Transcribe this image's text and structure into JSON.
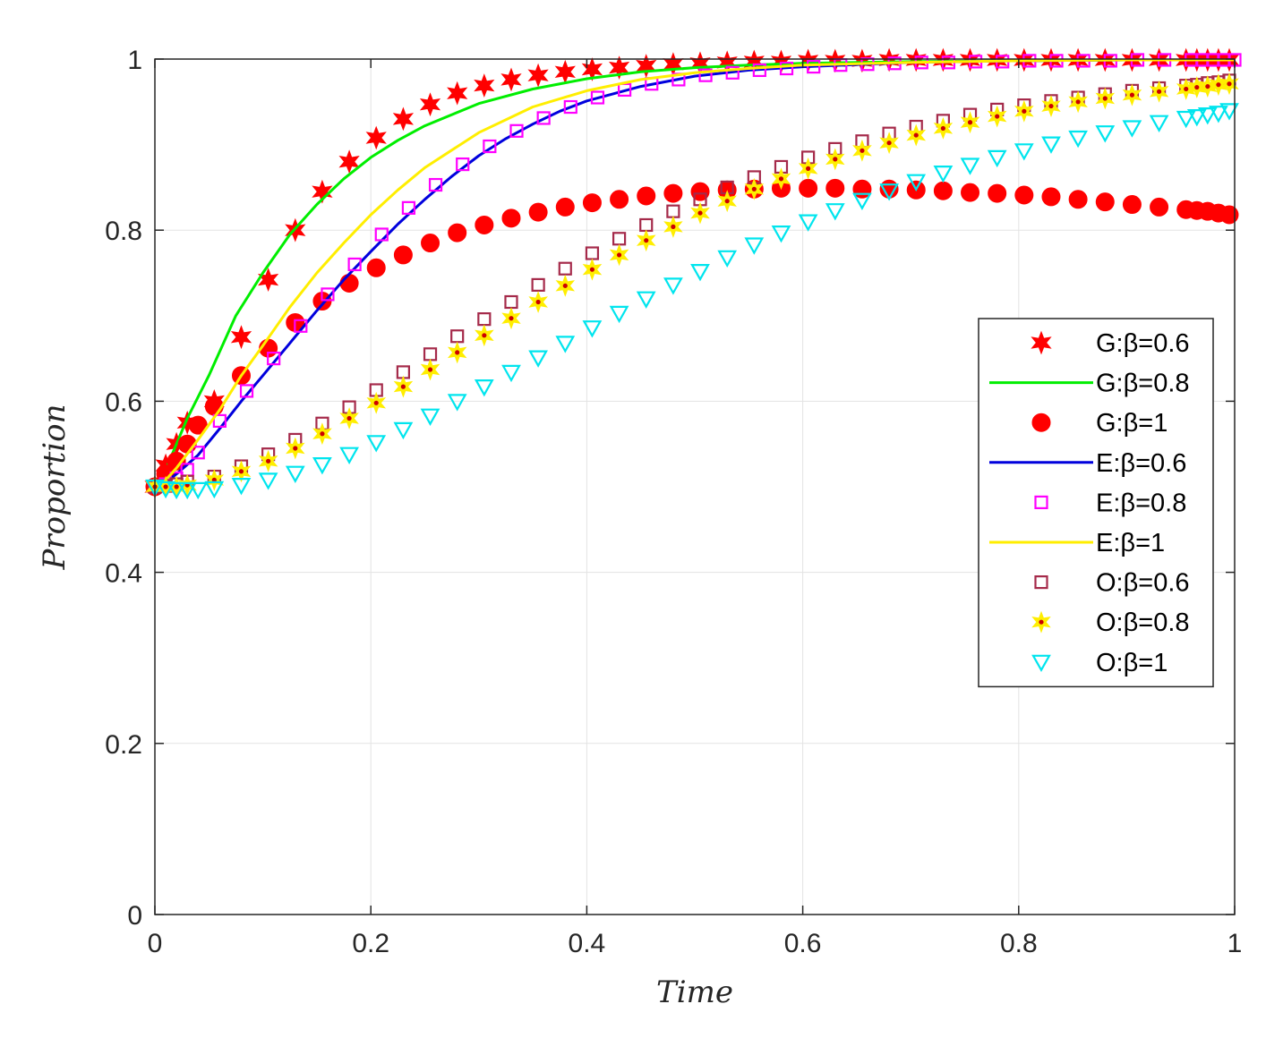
{
  "chart_data": {
    "type": "line",
    "title": "",
    "xlabel": "Time",
    "ylabel": "Proportion",
    "xlim": [
      0,
      1
    ],
    "ylim": [
      0,
      1
    ],
    "grid": true,
    "legend_position": "right",
    "x_ticks": [
      "0",
      "0.2",
      "0.4",
      "0.6",
      "0.8",
      "1"
    ],
    "y_ticks": [
      "0",
      "0.2",
      "0.4",
      "0.6",
      "0.8",
      "1"
    ],
    "series": [
      {
        "name": "G:β=0.6",
        "style": "star",
        "color": "#ff0000",
        "fill": "#ff0000",
        "x": [
          0,
          0.01,
          0.02,
          0.03,
          0.055,
          0.08,
          0.105,
          0.13,
          0.155,
          0.18,
          0.205,
          0.23,
          0.255,
          0.28,
          0.305,
          0.33,
          0.355,
          0.38,
          0.405,
          0.43,
          0.455,
          0.48,
          0.505,
          0.53,
          0.555,
          0.58,
          0.605,
          0.63,
          0.655,
          0.68,
          0.705,
          0.73,
          0.755,
          0.78,
          0.805,
          0.83,
          0.855,
          0.88,
          0.905,
          0.93,
          0.955,
          0.965,
          0.975,
          0.985,
          0.995
        ],
        "y": [
          0.5,
          0.525,
          0.55,
          0.575,
          0.6,
          0.675,
          0.742,
          0.8,
          0.845,
          0.88,
          0.908,
          0.93,
          0.947,
          0.96,
          0.969,
          0.976,
          0.981,
          0.985,
          0.988,
          0.99,
          0.992,
          0.994,
          0.995,
          0.996,
          0.997,
          0.997,
          0.998,
          0.998,
          0.998,
          0.999,
          0.999,
          0.999,
          0.999,
          0.999,
          0.999,
          0.999,
          0.999,
          0.999,
          0.999,
          0.999,
          0.999,
          0.999,
          0.999,
          0.999,
          0.999
        ]
      },
      {
        "name": "G:β=0.8",
        "style": "line",
        "color": "#00ee00",
        "x": [
          0,
          0.01,
          0.02,
          0.03,
          0.05,
          0.075,
          0.1,
          0.125,
          0.15,
          0.175,
          0.2,
          0.225,
          0.25,
          0.3,
          0.35,
          0.4,
          0.45,
          0.5,
          0.55,
          0.6,
          0.7,
          0.8,
          0.9,
          1
        ],
        "y": [
          0.5,
          0.52,
          0.55,
          0.58,
          0.63,
          0.7,
          0.75,
          0.795,
          0.83,
          0.86,
          0.885,
          0.905,
          0.922,
          0.948,
          0.965,
          0.977,
          0.985,
          0.99,
          0.993,
          0.995,
          0.997,
          0.998,
          0.999,
          0.999
        ]
      },
      {
        "name": "G:β=1",
        "style": "circle",
        "color": "#ff0000",
        "fill": "#ff0000",
        "x": [
          0,
          0.01,
          0.02,
          0.03,
          0.04,
          0.055,
          0.08,
          0.105,
          0.13,
          0.155,
          0.18,
          0.205,
          0.23,
          0.255,
          0.28,
          0.305,
          0.33,
          0.355,
          0.38,
          0.405,
          0.43,
          0.455,
          0.48,
          0.505,
          0.53,
          0.555,
          0.58,
          0.605,
          0.63,
          0.655,
          0.68,
          0.705,
          0.73,
          0.755,
          0.78,
          0.805,
          0.83,
          0.855,
          0.88,
          0.905,
          0.93,
          0.955,
          0.965,
          0.975,
          0.985,
          0.995
        ],
        "y": [
          0.5,
          0.515,
          0.53,
          0.55,
          0.572,
          0.594,
          0.63,
          0.662,
          0.692,
          0.717,
          0.738,
          0.756,
          0.771,
          0.785,
          0.797,
          0.806,
          0.814,
          0.821,
          0.827,
          0.832,
          0.836,
          0.84,
          0.843,
          0.845,
          0.847,
          0.848,
          0.849,
          0.849,
          0.849,
          0.848,
          0.848,
          0.847,
          0.846,
          0.844,
          0.843,
          0.841,
          0.839,
          0.836,
          0.833,
          0.83,
          0.827,
          0.824,
          0.823,
          0.822,
          0.82,
          0.818
        ]
      },
      {
        "name": "E:β=0.6",
        "style": "line",
        "color": "#0000dd",
        "x": [
          0,
          0.01,
          0.02,
          0.04,
          0.06,
          0.08,
          0.1,
          0.125,
          0.15,
          0.175,
          0.2,
          0.225,
          0.25,
          0.275,
          0.3,
          0.325,
          0.35,
          0.375,
          0.4,
          0.45,
          0.5,
          0.55,
          0.6,
          0.7,
          0.8,
          0.9,
          1
        ],
        "y": [
          0.5,
          0.505,
          0.515,
          0.537,
          0.568,
          0.6,
          0.63,
          0.668,
          0.706,
          0.742,
          0.775,
          0.807,
          0.836,
          0.863,
          0.887,
          0.907,
          0.924,
          0.939,
          0.951,
          0.968,
          0.98,
          0.987,
          0.991,
          0.996,
          0.998,
          0.999,
          0.999
        ]
      },
      {
        "name": "E:β=0.8",
        "style": "square",
        "color": "#ff00ff",
        "fill": "none",
        "x": [
          0,
          0.01,
          0.02,
          0.03,
          0.04,
          0.06,
          0.085,
          0.11,
          0.135,
          0.16,
          0.185,
          0.21,
          0.235,
          0.26,
          0.285,
          0.31,
          0.335,
          0.36,
          0.385,
          0.41,
          0.435,
          0.46,
          0.485,
          0.51,
          0.535,
          0.56,
          0.585,
          0.61,
          0.635,
          0.66,
          0.685,
          0.71,
          0.735,
          0.76,
          0.785,
          0.81,
          0.835,
          0.86,
          0.885,
          0.91,
          0.935,
          0.96,
          0.97,
          0.98,
          0.99,
          1
        ],
        "y": [
          0.5,
          0.503,
          0.51,
          0.52,
          0.54,
          0.577,
          0.612,
          0.65,
          0.688,
          0.725,
          0.76,
          0.795,
          0.826,
          0.853,
          0.877,
          0.898,
          0.916,
          0.931,
          0.944,
          0.955,
          0.964,
          0.971,
          0.976,
          0.981,
          0.984,
          0.987,
          0.989,
          0.991,
          0.993,
          0.994,
          0.995,
          0.996,
          0.996,
          0.997,
          0.997,
          0.998,
          0.998,
          0.998,
          0.998,
          0.999,
          0.999,
          0.999,
          0.999,
          0.999,
          0.999,
          0.999
        ]
      },
      {
        "name": "E:β=1",
        "style": "line",
        "color": "#ffee00",
        "x": [
          0,
          0.01,
          0.02,
          0.04,
          0.06,
          0.08,
          0.1,
          0.125,
          0.15,
          0.175,
          0.2,
          0.225,
          0.25,
          0.3,
          0.35,
          0.4,
          0.45,
          0.5,
          0.55,
          0.6,
          0.7,
          0.8,
          0.9,
          1
        ],
        "y": [
          0.5,
          0.508,
          0.522,
          0.555,
          0.59,
          0.63,
          0.665,
          0.71,
          0.75,
          0.785,
          0.818,
          0.847,
          0.873,
          0.914,
          0.944,
          0.963,
          0.976,
          0.984,
          0.989,
          0.993,
          0.996,
          0.998,
          0.999,
          0.999
        ]
      },
      {
        "name": "O:β=0.6",
        "style": "square",
        "color": "#a52a4a",
        "fill": "none",
        "x": [
          0,
          0.01,
          0.02,
          0.03,
          0.055,
          0.08,
          0.105,
          0.13,
          0.155,
          0.18,
          0.205,
          0.23,
          0.255,
          0.28,
          0.305,
          0.33,
          0.355,
          0.38,
          0.405,
          0.43,
          0.455,
          0.48,
          0.505,
          0.53,
          0.555,
          0.58,
          0.605,
          0.63,
          0.655,
          0.68,
          0.705,
          0.73,
          0.755,
          0.78,
          0.805,
          0.83,
          0.855,
          0.88,
          0.905,
          0.93,
          0.955,
          0.965,
          0.975,
          0.985,
          0.995
        ],
        "y": [
          0.5,
          0.501,
          0.503,
          0.506,
          0.512,
          0.524,
          0.538,
          0.555,
          0.574,
          0.593,
          0.613,
          0.634,
          0.655,
          0.676,
          0.696,
          0.716,
          0.736,
          0.755,
          0.773,
          0.79,
          0.806,
          0.822,
          0.836,
          0.85,
          0.862,
          0.874,
          0.885,
          0.895,
          0.904,
          0.913,
          0.921,
          0.928,
          0.935,
          0.941,
          0.946,
          0.951,
          0.955,
          0.959,
          0.963,
          0.966,
          0.969,
          0.97,
          0.972,
          0.973,
          0.975
        ]
      },
      {
        "name": "O:β=0.8",
        "style": "starfill",
        "color": "#ffee00",
        "fill": "#ffee00",
        "center": "#cc0000",
        "x": [
          0,
          0.01,
          0.02,
          0.03,
          0.055,
          0.08,
          0.105,
          0.13,
          0.155,
          0.18,
          0.205,
          0.23,
          0.255,
          0.28,
          0.305,
          0.33,
          0.355,
          0.38,
          0.405,
          0.43,
          0.455,
          0.48,
          0.505,
          0.53,
          0.555,
          0.58,
          0.605,
          0.63,
          0.655,
          0.68,
          0.705,
          0.73,
          0.755,
          0.78,
          0.805,
          0.83,
          0.855,
          0.88,
          0.905,
          0.93,
          0.955,
          0.965,
          0.975,
          0.985,
          0.995
        ],
        "y": [
          0.5,
          0.5,
          0.5,
          0.502,
          0.508,
          0.518,
          0.53,
          0.545,
          0.562,
          0.58,
          0.598,
          0.617,
          0.637,
          0.657,
          0.677,
          0.697,
          0.716,
          0.735,
          0.754,
          0.771,
          0.788,
          0.804,
          0.82,
          0.834,
          0.848,
          0.86,
          0.872,
          0.883,
          0.893,
          0.902,
          0.911,
          0.919,
          0.926,
          0.933,
          0.939,
          0.945,
          0.95,
          0.954,
          0.958,
          0.962,
          0.965,
          0.967,
          0.968,
          0.97,
          0.971
        ]
      },
      {
        "name": "O:β=1",
        "style": "triangle",
        "color": "#00e5ee",
        "fill": "none",
        "x": [
          0,
          0.01,
          0.02,
          0.03,
          0.04,
          0.055,
          0.08,
          0.105,
          0.13,
          0.155,
          0.18,
          0.205,
          0.23,
          0.255,
          0.28,
          0.305,
          0.33,
          0.355,
          0.38,
          0.405,
          0.43,
          0.455,
          0.48,
          0.505,
          0.53,
          0.555,
          0.58,
          0.605,
          0.63,
          0.655,
          0.68,
          0.705,
          0.73,
          0.755,
          0.78,
          0.805,
          0.83,
          0.855,
          0.88,
          0.905,
          0.93,
          0.955,
          0.965,
          0.975,
          0.985,
          0.995
        ],
        "y": [
          0.5,
          0.498,
          0.497,
          0.497,
          0.497,
          0.498,
          0.502,
          0.508,
          0.516,
          0.526,
          0.538,
          0.552,
          0.567,
          0.583,
          0.6,
          0.617,
          0.634,
          0.651,
          0.668,
          0.686,
          0.703,
          0.72,
          0.736,
          0.752,
          0.768,
          0.783,
          0.797,
          0.81,
          0.823,
          0.835,
          0.846,
          0.857,
          0.867,
          0.876,
          0.885,
          0.893,
          0.901,
          0.908,
          0.914,
          0.92,
          0.926,
          0.931,
          0.933,
          0.935,
          0.937,
          0.94
        ]
      }
    ]
  }
}
